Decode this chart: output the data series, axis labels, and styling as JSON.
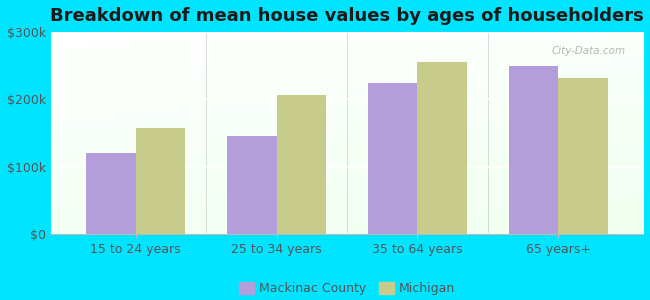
{
  "title": "Breakdown of mean house values by ages of householders",
  "categories": [
    "15 to 24 years",
    "25 to 34 years",
    "35 to 64 years",
    "65 years+"
  ],
  "mackinac_values": [
    120000,
    145000,
    225000,
    250000
  ],
  "michigan_values": [
    158000,
    207000,
    255000,
    232000
  ],
  "mackinac_color": "#b39ddb",
  "michigan_color": "#c8cc8a",
  "background_color": "#00e5ff",
  "ylim": [
    0,
    300000
  ],
  "yticks": [
    0,
    100000,
    200000,
    300000
  ],
  "ytick_labels": [
    "$0",
    "$100k",
    "$200k",
    "$300k"
  ],
  "legend_mackinac": "Mackinac County",
  "legend_michigan": "Michigan",
  "title_fontsize": 13,
  "tick_fontsize": 9,
  "legend_fontsize": 9,
  "bar_width": 0.35,
  "watermark": "City-Data.com"
}
